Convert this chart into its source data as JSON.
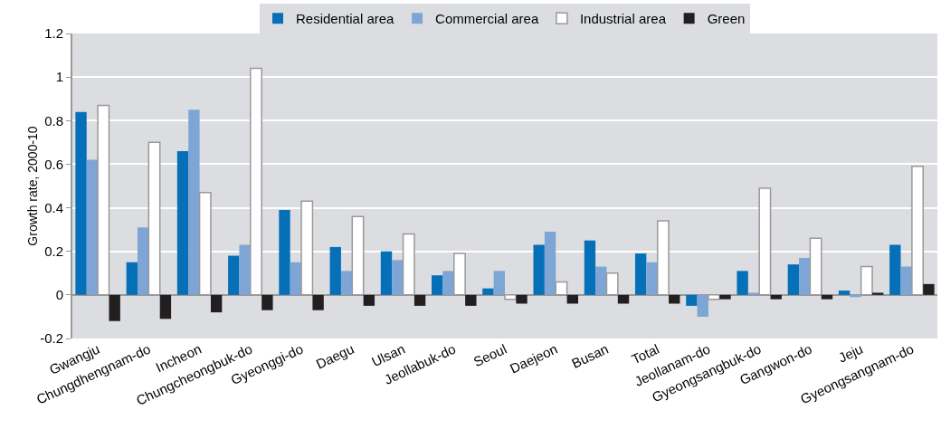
{
  "chart_data": {
    "type": "bar",
    "ylabel": "Growth rate, 2000-10",
    "categories": [
      "Gwangju",
      "Chungdhengnam-do",
      "Incheon",
      "Chungcheongbuk-do",
      "Gyeonggi-do",
      "Daegu",
      "Ulsan",
      "Jeollabuk-do",
      "Seoul",
      "Daejeon",
      "Busan",
      "Total",
      "Jeollanam-do",
      "Gyeongsangbuk-do",
      "Gangwon-do",
      "Jeju",
      "Gyeongsangnam-do"
    ],
    "series": [
      {
        "name": "Residential area",
        "color": "#0570b8",
        "values": [
          0.84,
          0.15,
          0.66,
          0.18,
          0.39,
          0.22,
          0.2,
          0.09,
          0.03,
          0.23,
          0.25,
          0.19,
          -0.05,
          0.11,
          0.14,
          0.02,
          0.23
        ]
      },
      {
        "name": "Commercial area",
        "color": "#7da5d6",
        "values": [
          0.62,
          0.31,
          0.85,
          0.23,
          0.15,
          0.11,
          0.16,
          0.11,
          0.11,
          0.29,
          0.13,
          0.15,
          -0.1,
          0.01,
          0.17,
          -0.01,
          0.13
        ]
      },
      {
        "name": "Industrial area",
        "color": "#ffffff",
        "values": [
          0.87,
          0.7,
          0.47,
          1.04,
          0.43,
          0.36,
          0.28,
          0.19,
          -0.02,
          0.06,
          0.1,
          0.34,
          -0.02,
          0.49,
          0.26,
          0.13,
          0.59
        ]
      },
      {
        "name": "Green",
        "color": "#231f20",
        "values": [
          -0.12,
          -0.11,
          -0.08,
          -0.07,
          -0.07,
          -0.05,
          -0.05,
          -0.05,
          -0.04,
          -0.04,
          -0.04,
          -0.04,
          -0.02,
          -0.02,
          -0.02,
          0.01,
          0.05
        ]
      }
    ],
    "ylim": [
      -0.2,
      1.2
    ],
    "yticks": [
      -0.2,
      0,
      0.2,
      0.4,
      0.6,
      0.8,
      1,
      1.2
    ],
    "grid": "y",
    "legend": "top"
  }
}
